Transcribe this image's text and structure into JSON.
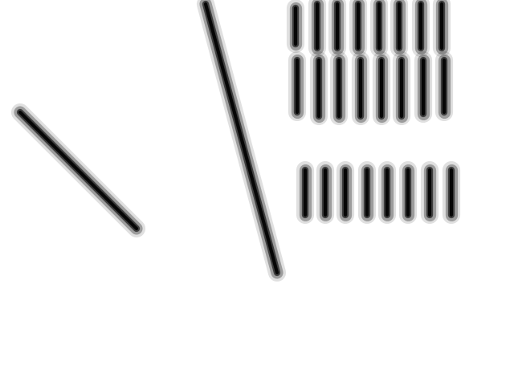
{
  "chart_data": {
    "type": "spectrogram",
    "tick_labels": false,
    "grid": false,
    "color": "#000000",
    "xlim": [
      0,
      640
    ],
    "ylim": [
      0,
      480
    ],
    "notes": [
      {
        "start": [
          25,
          340
        ],
        "end": [
          170,
          195
        ]
      },
      {
        "start": [
          256,
          475
        ],
        "end": [
          345,
          140
        ]
      },
      {
        "start": [
          368,
          470
        ],
        "end": [
          368,
          425
        ]
      },
      {
        "start": [
          395,
          475
        ],
        "end": [
          395,
          420
        ]
      },
      {
        "start": [
          420,
          475
        ],
        "end": [
          420,
          420
        ]
      },
      {
        "start": [
          446,
          475
        ],
        "end": [
          446,
          420
        ]
      },
      {
        "start": [
          472,
          475
        ],
        "end": [
          472,
          420
        ]
      },
      {
        "start": [
          497,
          475
        ],
        "end": [
          497,
          420
        ]
      },
      {
        "start": [
          524,
          475
        ],
        "end": [
          524,
          420
        ]
      },
      {
        "start": [
          550,
          475
        ],
        "end": [
          550,
          420
        ]
      },
      {
        "start": [
          370,
          405
        ],
        "end": [
          370,
          340
        ]
      },
      {
        "start": [
          397,
          405
        ],
        "end": [
          397,
          335
        ]
      },
      {
        "start": [
          422,
          405
        ],
        "end": [
          422,
          335
        ]
      },
      {
        "start": [
          449,
          405
        ],
        "end": [
          449,
          335
        ]
      },
      {
        "start": [
          475,
          405
        ],
        "end": [
          475,
          335
        ]
      },
      {
        "start": [
          500,
          405
        ],
        "end": [
          500,
          335
        ]
      },
      {
        "start": [
          527,
          405
        ],
        "end": [
          527,
          338
        ]
      },
      {
        "start": [
          553,
          405
        ],
        "end": [
          553,
          340
        ]
      },
      {
        "start": [
          380,
          268
        ],
        "end": [
          380,
          212
        ]
      },
      {
        "start": [
          405,
          268
        ],
        "end": [
          405,
          212
        ]
      },
      {
        "start": [
          430,
          268
        ],
        "end": [
          430,
          212
        ]
      },
      {
        "start": [
          457,
          268
        ],
        "end": [
          457,
          212
        ]
      },
      {
        "start": [
          482,
          268
        ],
        "end": [
          482,
          212
        ]
      },
      {
        "start": [
          508,
          268
        ],
        "end": [
          508,
          212
        ]
      },
      {
        "start": [
          535,
          268
        ],
        "end": [
          535,
          212
        ]
      },
      {
        "start": [
          562,
          268
        ],
        "end": [
          562,
          212
        ]
      }
    ]
  }
}
